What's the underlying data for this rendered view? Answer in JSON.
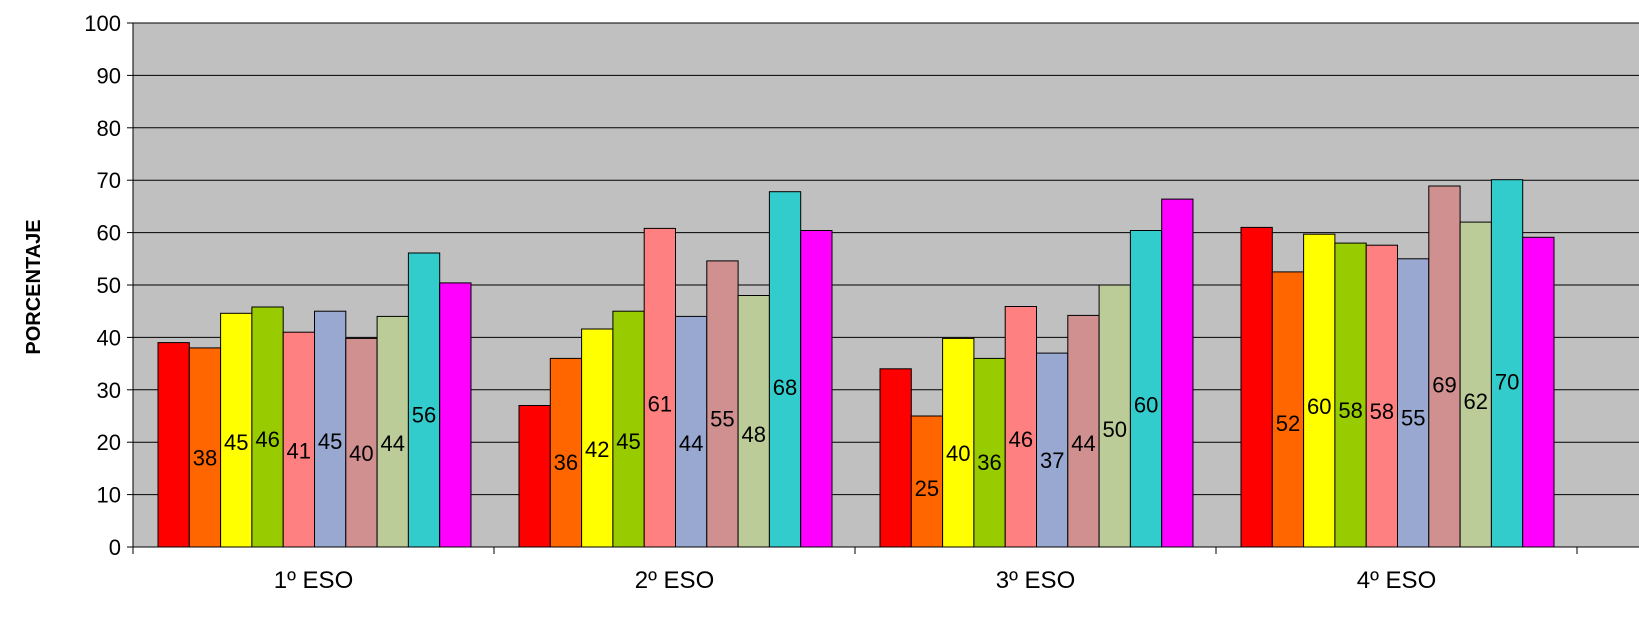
{
  "chart_data": {
    "type": "bar",
    "categories": [
      "1º ESO",
      "2º ESO",
      "3º ESO",
      "4º ESO"
    ],
    "ylabel": "PORCENTAJE",
    "xlabel": "",
    "ylim": [
      0,
      100
    ],
    "yticks": [
      0,
      10,
      20,
      30,
      40,
      50,
      60,
      70,
      80,
      90,
      100
    ],
    "grid": true,
    "plot_background": "#C0C0C0",
    "series": [
      {
        "color": "#FF0000",
        "values": [
          39,
          27,
          34,
          61
        ],
        "labels": [
          "39",
          "27",
          "34",
          "61"
        ]
      },
      {
        "color": "#FF6600",
        "values": [
          38,
          36,
          25,
          52.5
        ],
        "labels": [
          "38",
          "36",
          "25",
          "52"
        ]
      },
      {
        "color": "#FFFF00",
        "values": [
          44.6,
          41.6,
          39.8,
          59.7
        ],
        "labels": [
          "45",
          "42",
          "40",
          "60"
        ]
      },
      {
        "color": "#99CC00",
        "values": [
          45.8,
          45,
          36,
          58
        ],
        "labels": [
          "46",
          "45",
          "36",
          "58"
        ]
      },
      {
        "color": "#FF8080",
        "values": [
          41,
          60.8,
          45.9,
          57.6
        ],
        "labels": [
          "41",
          "61",
          "46",
          "58"
        ]
      },
      {
        "color": "#99A8D0",
        "values": [
          45,
          44,
          37,
          55
        ],
        "labels": [
          "45",
          "44",
          "37",
          "55"
        ]
      },
      {
        "color": "#D09090",
        "values": [
          39.8,
          54.6,
          44.2,
          68.9
        ],
        "labels": [
          "40",
          "55",
          "44",
          "69"
        ]
      },
      {
        "color": "#BBCC99",
        "values": [
          44,
          48,
          50,
          62
        ],
        "labels": [
          "44",
          "48",
          "50",
          "62"
        ]
      },
      {
        "color": "#33CCCC",
        "values": [
          56.1,
          67.8,
          60.4,
          70.1
        ],
        "labels": [
          "56",
          "68",
          "60",
          "70"
        ]
      },
      {
        "color": "#FF00FF",
        "values": [
          50.4,
          60.4,
          66.4,
          59.1
        ],
        "labels": [
          "50",
          "60",
          "66",
          "59"
        ]
      }
    ],
    "label_colors": [
      "#FF0000",
      "#000000",
      "#000000",
      "#000000",
      "#000000",
      "#000000",
      "#000000",
      "#000000",
      "#000000",
      "#FF00FF"
    ]
  }
}
